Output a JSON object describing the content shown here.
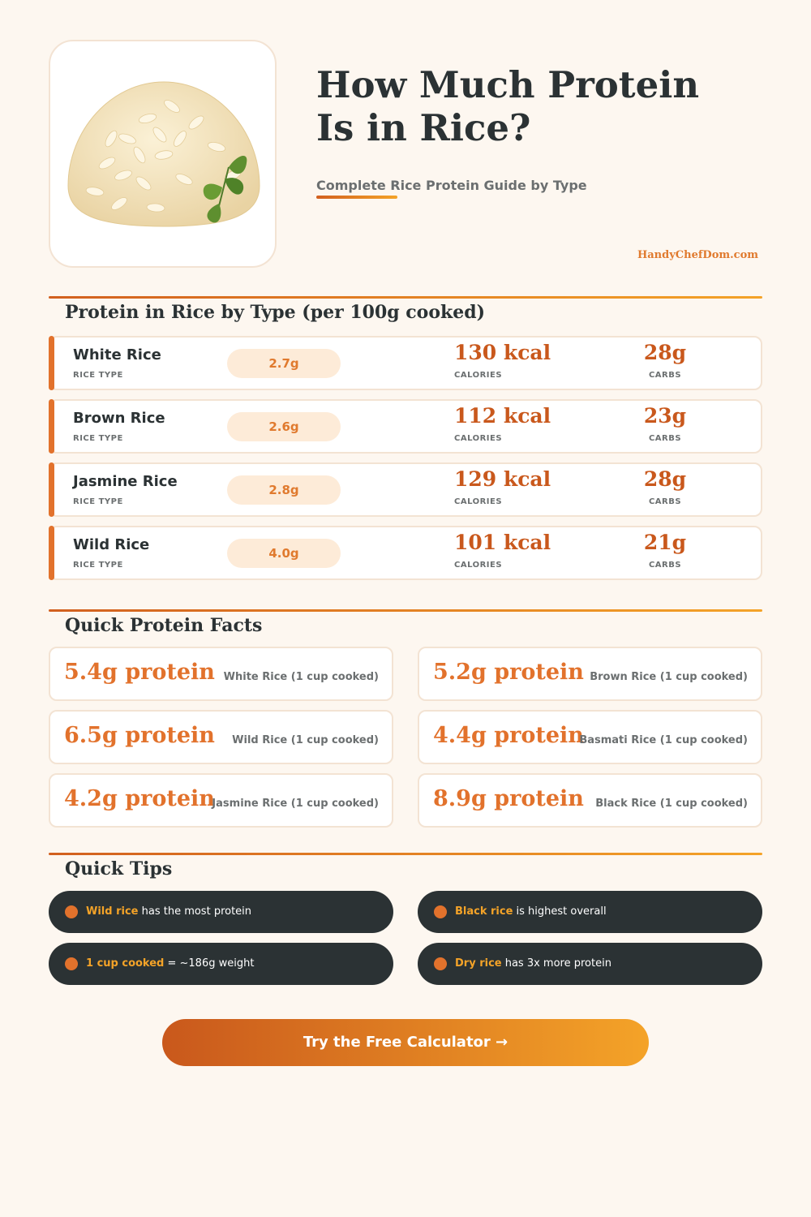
{
  "header": {
    "title_line1": "How Much Protein",
    "title_line2": "Is in Rice?",
    "subtitle": "Complete Rice Protein Guide by Type",
    "site": "HandyChefDom.com",
    "hero_image": "rice-mound-with-parsley"
  },
  "table_section": {
    "title": "Protein in Rice by Type (per 100g cooked)",
    "type_label": "RICE TYPE",
    "calories_label": "CALORIES",
    "carbs_label": "CARBS",
    "rows": [
      {
        "name": "White Rice",
        "protein": "2.7g",
        "calories": "130 kcal",
        "carbs": "28g"
      },
      {
        "name": "Brown Rice",
        "protein": "2.6g",
        "calories": "112 kcal",
        "carbs": "23g"
      },
      {
        "name": "Jasmine Rice",
        "protein": "2.8g",
        "calories": "129 kcal",
        "carbs": "28g"
      },
      {
        "name": "Wild Rice",
        "protein": "4.0g",
        "calories": "101 kcal",
        "carbs": "21g"
      }
    ]
  },
  "facts_section": {
    "title": "Quick Protein Facts",
    "facts": [
      {
        "value": "5.4g protein",
        "label": "White Rice (1 cup cooked)"
      },
      {
        "value": "5.2g protein",
        "label": "Brown Rice (1 cup cooked)"
      },
      {
        "value": "6.5g protein",
        "label": "Wild Rice (1 cup cooked)"
      },
      {
        "value": "4.4g protein",
        "label": "Basmati Rice (1 cup cooked)"
      },
      {
        "value": "4.2g protein",
        "label": "Jasmine Rice (1 cup cooked)"
      },
      {
        "value": "8.9g protein",
        "label": "Black Rice (1 cup cooked)"
      }
    ]
  },
  "tips_section": {
    "title": "Quick Tips",
    "tips": [
      {
        "highlight": "Wild rice",
        "text": " has the most protein"
      },
      {
        "highlight": "Black rice",
        "text": " is highest overall"
      },
      {
        "highlight": "1 cup cooked",
        "text": " = ~186g weight"
      },
      {
        "highlight": "Dry rice",
        "text": " has 3x more protein"
      }
    ]
  },
  "cta": {
    "label": "Try the Free Calculator →"
  },
  "colors": {
    "accent": "#e2722c",
    "accent_dark": "#c9581c",
    "accent_light": "#f4a328",
    "dark": "#2b3234",
    "background": "#fdf7f0"
  }
}
